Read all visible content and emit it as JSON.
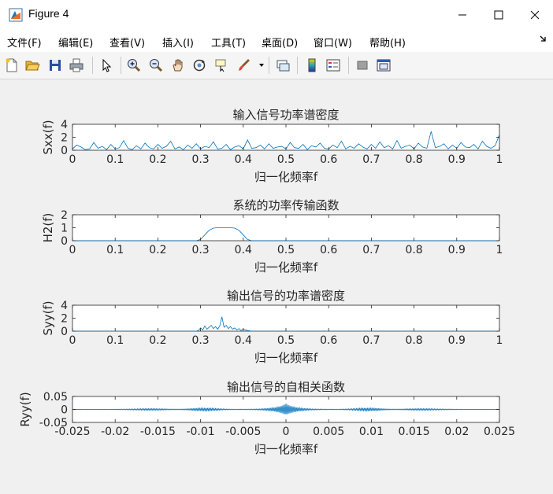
{
  "window": {
    "title": "Figure 4"
  },
  "menu": [
    "文件(F)",
    "编辑(E)",
    "查看(V)",
    "插入(I)",
    "工具(T)",
    "桌面(D)",
    "窗口(W)",
    "帮助(H)"
  ],
  "toolbar": [
    "new-figure-icon",
    "open-file-icon",
    "save-icon",
    "print-icon",
    "select-arrow-icon",
    "zoom-in-icon",
    "zoom-out-icon",
    "pan-hand-icon",
    "rotate-3d-icon",
    "data-cursor-icon",
    "brush-icon",
    "link-plot-icon",
    "colorbar-icon",
    "legend-icon",
    "hide-plot-tools-icon",
    "show-plot-tools-icon"
  ],
  "colors": {
    "line": "#0072BD",
    "axes_bg": "#ffffff",
    "figure_bg": "#f0f0f0"
  },
  "chart_data": [
    {
      "type": "line",
      "title": "输入信号功率谱密度",
      "xlabel": "归一化频率f",
      "ylabel": "Sxx(f)",
      "xlim": [
        0,
        1
      ],
      "ylim": [
        0,
        4
      ],
      "xticks": [
        "0",
        "0.1",
        "0.2",
        "0.3",
        "0.4",
        "0.5",
        "0.6",
        "0.7",
        "0.8",
        "0.9",
        "1"
      ],
      "yticks": [
        "0",
        "2",
        "4"
      ],
      "series": [
        {
          "values": [
            0.2,
            0.8,
            0.5,
            0.1,
            0.2,
            1.2,
            0.3,
            0.6,
            0.1,
            0.9,
            0.2,
            0.4,
            1.5,
            0.3,
            0.1,
            0.7,
            0.2,
            1.1,
            0.4,
            0.2,
            0.9,
            0.3,
            0.6,
            1.4,
            0.2,
            0.5,
            0.1,
            0.8,
            0.3,
            1.0,
            0.2,
            0.6,
            0.4,
            1.3,
            0.2,
            0.3,
            0.9,
            0.1,
            0.5,
            0.7,
            0.2,
            1.6,
            0.3,
            0.4,
            0.8,
            0.2,
            1.0,
            0.3,
            0.5,
            0.6,
            0.2,
            1.2,
            0.4,
            0.3,
            0.9,
            0.1,
            0.7,
            0.5,
            1.1,
            0.3,
            0.2,
            0.8,
            0.4,
            1.4,
            0.2,
            0.6,
            0.3,
            1.0,
            0.5,
            0.2,
            0.9,
            0.3,
            1.3,
            0.4,
            0.7,
            0.2,
            1.5,
            0.3,
            0.6,
            0.8,
            0.2,
            1.1,
            0.5,
            0.3,
            2.9,
            0.4,
            0.6,
            1.0,
            0.2,
            0.8,
            0.3,
            1.2,
            0.5,
            0.4,
            0.9,
            0.2,
            1.4,
            0.6,
            0.3,
            0.7,
            2.4
          ]
        }
      ]
    },
    {
      "type": "line",
      "title": "系统的功率传输函数",
      "xlabel": "归一化频率f",
      "ylabel": "H2(f)",
      "xlim": [
        0,
        1
      ],
      "ylim": [
        0,
        2
      ],
      "xticks": [
        "0",
        "0.1",
        "0.2",
        "0.3",
        "0.4",
        "0.5",
        "0.6",
        "0.7",
        "0.8",
        "0.9",
        "1"
      ],
      "yticks": [
        "0",
        "1",
        "2"
      ],
      "series": [
        {
          "x": [
            0,
            0.29,
            0.3,
            0.31,
            0.32,
            0.33,
            0.34,
            0.35,
            0.36,
            0.37,
            0.38,
            0.39,
            0.4,
            0.41,
            0.42,
            1
          ],
          "values": [
            0,
            0,
            0.1,
            0.45,
            0.8,
            0.97,
            1.0,
            1.0,
            1.0,
            1.0,
            0.97,
            0.8,
            0.45,
            0.1,
            0,
            0
          ]
        }
      ]
    },
    {
      "type": "line",
      "title": "输出信号的功率谱密度",
      "xlabel": "归一化频率f",
      "ylabel": "Syy(f)",
      "xlim": [
        0,
        1
      ],
      "ylim": [
        0,
        4
      ],
      "xticks": [
        "0",
        "0.1",
        "0.2",
        "0.3",
        "0.4",
        "0.5",
        "0.6",
        "0.7",
        "0.8",
        "0.9",
        "1"
      ],
      "yticks": [
        "0",
        "2",
        "4"
      ],
      "series": [
        {
          "x": [
            0,
            0.29,
            0.295,
            0.3,
            0.305,
            0.31,
            0.315,
            0.32,
            0.325,
            0.33,
            0.335,
            0.34,
            0.345,
            0.35,
            0.355,
            0.36,
            0.365,
            0.37,
            0.375,
            0.38,
            0.385,
            0.39,
            0.395,
            0.4,
            0.41,
            0.42,
            1
          ],
          "values": [
            0,
            0,
            0.1,
            0.5,
            0.2,
            0.8,
            0.3,
            0.6,
            0.9,
            0.4,
            0.7,
            0.3,
            0.8,
            2.2,
            0.6,
            0.9,
            0.4,
            0.7,
            0.3,
            0.5,
            0.2,
            0.4,
            0.1,
            0.3,
            0.1,
            0,
            0
          ]
        }
      ]
    },
    {
      "type": "line",
      "title": "输出信号的自相关函数",
      "xlabel": "归一化频率f",
      "ylabel": "Ryy(f)",
      "xlim": [
        -0.025,
        0.025
      ],
      "ylim": [
        -0.05,
        0.05
      ],
      "xticks": [
        "-0.025",
        "-0.02",
        "-0.015",
        "-0.01",
        "-0.005",
        "0",
        "0.005",
        "0.01",
        "0.015",
        "0.02",
        "0.025"
      ],
      "yticks": [
        "-0.05",
        "0",
        "0.05"
      ],
      "series": [
        {
          "function": "damped-oscillation",
          "peak": 0.022,
          "carrier_cycles_per_unit": 6000
        }
      ]
    }
  ]
}
